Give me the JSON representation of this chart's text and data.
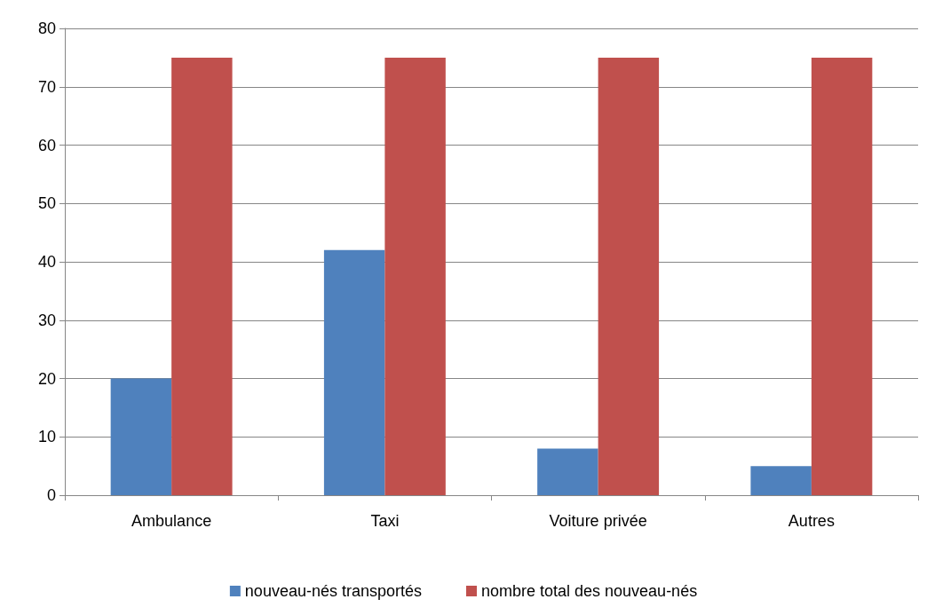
{
  "chart_data": {
    "type": "bar",
    "categories": [
      "Ambulance",
      "Taxi",
      "Voiture privée",
      "Autres"
    ],
    "series": [
      {
        "name": "nouveau-nés transportés",
        "color": "#4f81bd",
        "values": [
          20,
          42,
          8,
          5
        ]
      },
      {
        "name": "nombre total des nouveau-nés",
        "color": "#c0504d",
        "values": [
          75,
          75,
          75,
          75
        ]
      }
    ],
    "ylim": [
      0,
      80
    ],
    "yticks": [
      0,
      10,
      20,
      30,
      40,
      50,
      60,
      70,
      80
    ],
    "grid": "y",
    "legend": "bottom"
  }
}
